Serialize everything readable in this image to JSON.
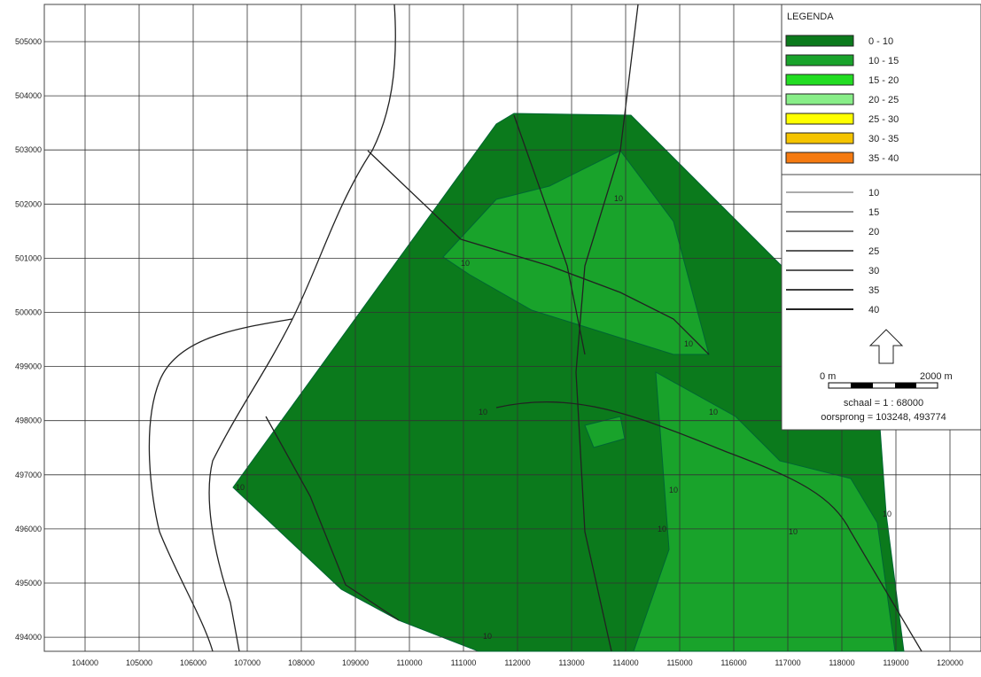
{
  "map": {
    "x_labels": [
      "104000",
      "105000",
      "106000",
      "107000",
      "108000",
      "109000",
      "110000",
      "111000",
      "112000",
      "113000",
      "114000",
      "115000",
      "116000",
      "117000",
      "118000",
      "119000",
      "120000"
    ],
    "y_labels": [
      "505000",
      "504000",
      "503000",
      "502000",
      "501000",
      "500000",
      "499000",
      "498000",
      "497000",
      "496000",
      "495000",
      "494000"
    ],
    "legend": {
      "title": "LEGENDA",
      "fill_classes": [
        {
          "label": "0 - 10",
          "color": "#0b7a1c"
        },
        {
          "label": "10 - 15",
          "color": "#19a32b"
        },
        {
          "label": "15 - 20",
          "color": "#22dd22"
        },
        {
          "label": "20 - 25",
          "color": "#88ee88"
        },
        {
          "label": "25 - 30",
          "color": "#ffff00"
        },
        {
          "label": "30 - 35",
          "color": "#f5c400"
        },
        {
          "label": "35 - 40",
          "color": "#f57a10"
        }
      ],
      "line_classes": [
        "10",
        "15",
        "20",
        "25",
        "30",
        "35",
        "40"
      ]
    },
    "scale": {
      "start": "0 m",
      "end": "2000 m",
      "ratio": "schaal = 1 : 68000",
      "origin": "oorsprong = 103248, 493774"
    },
    "contour_labels": [
      "10",
      "10",
      "10",
      "10",
      "10",
      "10",
      "10",
      "10",
      "10",
      "10",
      "10"
    ]
  }
}
